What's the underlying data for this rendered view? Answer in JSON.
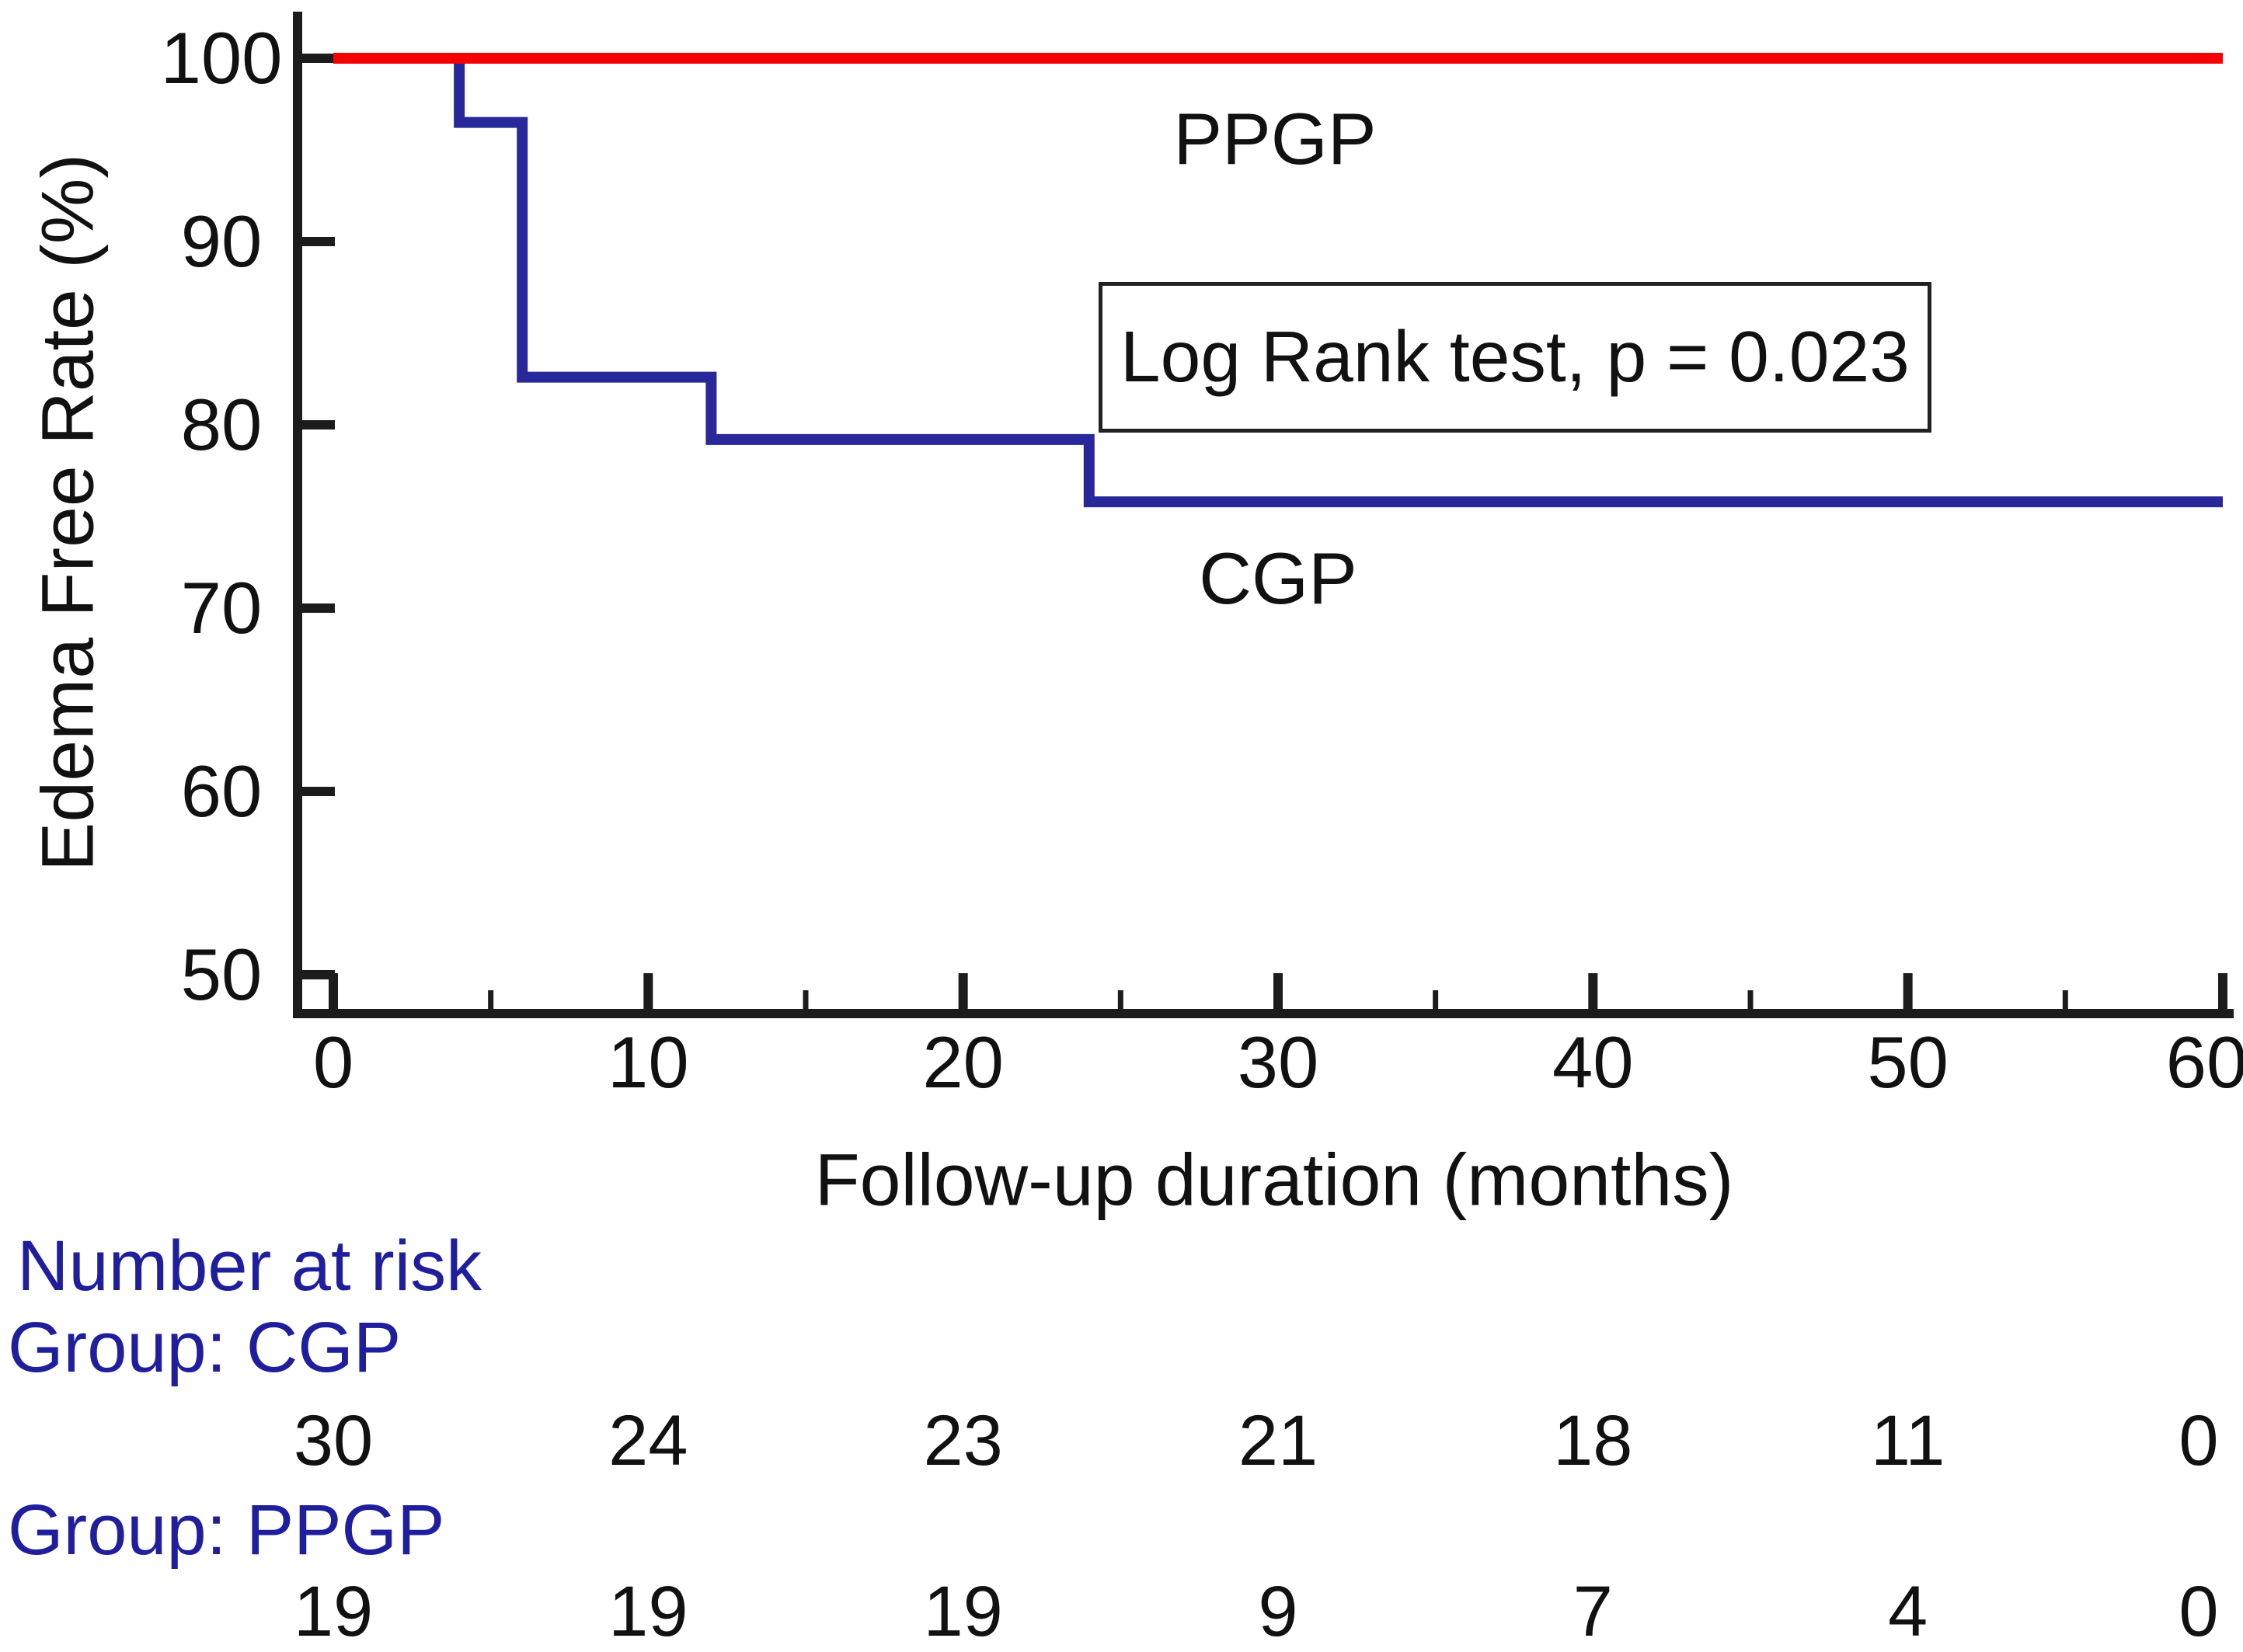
{
  "chart_data": {
    "type": "line",
    "subtype": "kaplan-meier-step",
    "title": "",
    "xlabel": "Follow-up duration (months)",
    "ylabel": "Edema Free Rate (%)",
    "xlim": [
      0,
      60
    ],
    "ylim": [
      50,
      100
    ],
    "x_ticks": [
      0,
      10,
      20,
      30,
      40,
      50,
      60
    ],
    "x_minor_ticks": [
      5,
      15,
      25,
      35,
      45,
      55
    ],
    "y_ticks": [
      50,
      60,
      70,
      80,
      90,
      100
    ],
    "grid": false,
    "legend_position": "inline-labels",
    "series": [
      {
        "name": "PPGP",
        "color": "#f50000",
        "points": [
          [
            0,
            100
          ],
          [
            60,
            100
          ]
        ],
        "label_pos": [
          29.9,
          95.6
        ]
      },
      {
        "name": "CGP",
        "color": "#28289b",
        "points": [
          [
            0,
            100
          ],
          [
            4,
            100
          ],
          [
            4,
            96.5
          ],
          [
            6,
            96.5
          ],
          [
            6,
            82.6
          ],
          [
            12,
            82.6
          ],
          [
            12,
            79.2
          ],
          [
            24,
            79.2
          ],
          [
            24,
            75.8
          ],
          [
            60,
            75.8
          ]
        ],
        "label_pos": [
          30.0,
          71.6
        ]
      }
    ],
    "annotation": {
      "text": "Log Rank test, p = 0.023",
      "box": true,
      "x_range_months": [
        24.3,
        50.5
      ],
      "y_range_pct": [
        80.0,
        87.8
      ]
    }
  },
  "risk_table": {
    "header": "Number at risk",
    "groups": [
      {
        "label": "Group: CGP",
        "values": [
          "30",
          "24",
          "23",
          "21",
          "18",
          "11",
          "0"
        ]
      },
      {
        "label": "Group: PPGP",
        "values": [
          "19",
          "19",
          "19",
          "9",
          "7",
          "4",
          "0"
        ]
      }
    ]
  },
  "colors": {
    "ppgp_line": "#f50000",
    "cgp_line": "#28289b",
    "risk_label_text": "#1f1f9e",
    "risk_value_text": "#111111",
    "axis": "#1c1c1c",
    "text": "#111111"
  }
}
